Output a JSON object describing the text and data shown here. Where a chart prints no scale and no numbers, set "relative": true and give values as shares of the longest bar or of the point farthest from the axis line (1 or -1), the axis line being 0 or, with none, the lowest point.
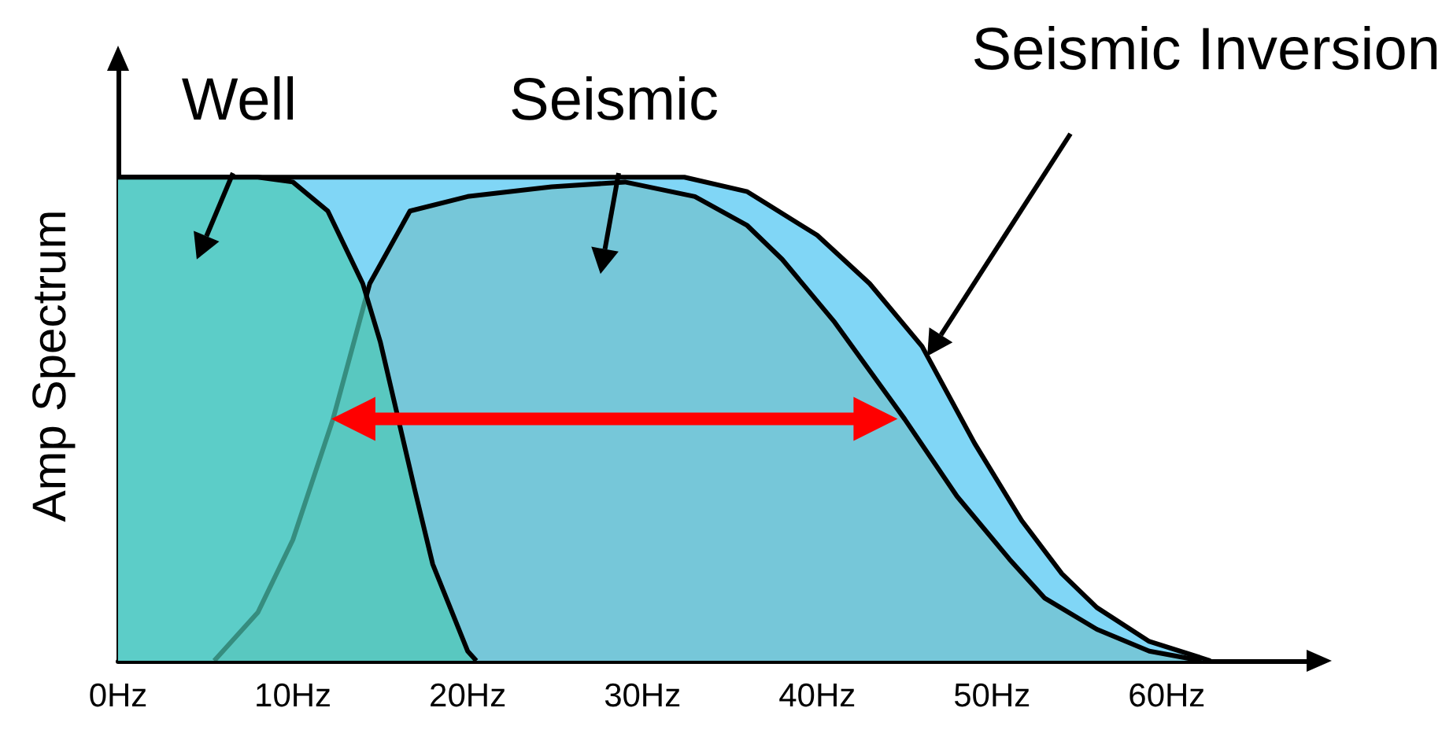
{
  "chart_data": {
    "type": "area",
    "relative": true,
    "ylabel": "Amp Spectrum",
    "xlim": [
      0,
      68
    ],
    "xticks": [
      {
        "value": 0,
        "label": "0Hz"
      },
      {
        "value": 10,
        "label": "10Hz"
      },
      {
        "value": 20,
        "label": "20Hz"
      },
      {
        "value": 30,
        "label": "30Hz"
      },
      {
        "value": 40,
        "label": "40Hz"
      },
      {
        "value": 50,
        "label": "50Hz"
      },
      {
        "value": 60,
        "label": "60Hz"
      }
    ],
    "series": [
      {
        "name": "Seismic Inversion",
        "color": "#80d6f6",
        "x": [
          0,
          10,
          20,
          30,
          32.4,
          36,
          40,
          43,
          46,
          49,
          51.7,
          54,
          56,
          59,
          62.5
        ],
        "values": [
          1,
          1,
          1,
          1,
          1,
          0.97,
          0.88,
          0.78,
          0.65,
          0.45,
          0.29,
          0.18,
          0.11,
          0.04,
          0
        ]
      },
      {
        "name": "Seismic",
        "color": "#76c7d9",
        "x": [
          5.5,
          8,
          10,
          12.3,
          14.4,
          16.7,
          20,
          24.8,
          29,
          33,
          36,
          38,
          41,
          45,
          48,
          51,
          53,
          56,
          59,
          62
        ],
        "values": [
          0,
          0.1,
          0.25,
          0.5,
          0.78,
          0.93,
          0.96,
          0.98,
          0.99,
          0.96,
          0.9,
          0.83,
          0.7,
          0.5,
          0.34,
          0.21,
          0.13,
          0.065,
          0.02,
          0
        ]
      },
      {
        "name": "Well",
        "color": "#4dc9b5",
        "x": [
          0,
          5,
          8,
          10,
          12,
          14,
          15,
          17,
          18,
          20,
          20.5
        ],
        "values": [
          1,
          1,
          1,
          0.99,
          0.93,
          0.78,
          0.66,
          0.35,
          0.2,
          0.02,
          0
        ]
      }
    ],
    "grid": false,
    "legend": false
  }
}
